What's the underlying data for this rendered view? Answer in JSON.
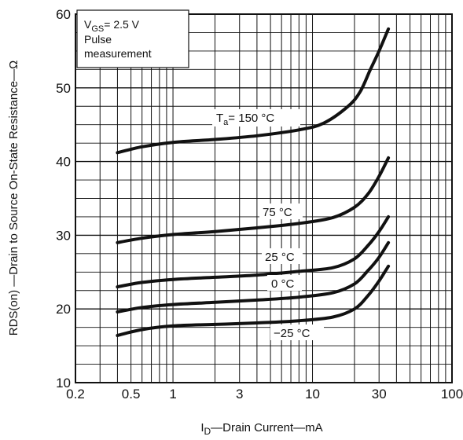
{
  "chart_data": {
    "type": "line",
    "x_scale": "log",
    "xlim": [
      0.2,
      100
    ],
    "ylim": [
      10,
      60
    ],
    "grid": true,
    "x_ticks": [
      "0.2",
      "0.5",
      "1",
      "3",
      "10",
      "30",
      "100"
    ],
    "x_tick_values": [
      0.2,
      0.5,
      1,
      3,
      10,
      30,
      100
    ],
    "y_ticks": [
      "10",
      "20",
      "30",
      "40",
      "50",
      "60"
    ],
    "y_tick_values": [
      10,
      20,
      30,
      40,
      50,
      60
    ],
    "xlabel": {
      "sym": "I",
      "sub": "D",
      "rest": "—Drain Current—mA"
    },
    "ylabel": "RDS(on) —Drain to Source On-State Resistance—Ω",
    "conditions": {
      "line1_sym": "V",
      "line1_sub": "GS",
      "line1_rest": "= 2.5 V",
      "line2": "Pulse",
      "line3": "measurement"
    },
    "series": [
      {
        "name": "Ta = 150 °C",
        "label_sym": "T",
        "label_sub": "a",
        "label_rest": "= 150 °C",
        "x": [
          0.4,
          0.6,
          1,
          2,
          4,
          8,
          12,
          18,
          22,
          26,
          30,
          35
        ],
        "y": [
          41.2,
          42.0,
          42.6,
          43.0,
          43.5,
          44.3,
          45.2,
          47.5,
          49.5,
          52.5,
          55.0,
          58.0
        ]
      },
      {
        "name": "75 °C",
        "label_sym": "",
        "label_sub": "",
        "label_rest": "75 °C",
        "x": [
          0.4,
          0.6,
          1,
          2,
          4,
          8,
          14,
          20,
          25,
          30,
          35
        ],
        "y": [
          29.0,
          29.6,
          30.1,
          30.5,
          31.0,
          31.6,
          32.4,
          33.8,
          35.6,
          38.0,
          40.5
        ]
      },
      {
        "name": "25 °C",
        "label_sym": "",
        "label_sub": "",
        "label_rest": "25 °C",
        "x": [
          0.4,
          0.6,
          1,
          2,
          4,
          8,
          14,
          20,
          25,
          30,
          35
        ],
        "y": [
          23.0,
          23.6,
          24.0,
          24.3,
          24.6,
          25.1,
          25.6,
          26.8,
          28.6,
          30.5,
          32.5
        ]
      },
      {
        "name": "0 °C",
        "label_sym": "",
        "label_sub": "",
        "label_rest": "0 °C",
        "x": [
          0.4,
          0.6,
          1,
          2,
          4,
          8,
          14,
          20,
          25,
          30,
          35
        ],
        "y": [
          19.6,
          20.2,
          20.6,
          20.9,
          21.2,
          21.6,
          22.2,
          23.4,
          25.2,
          27.0,
          29.0
        ]
      },
      {
        "name": "−25 °C",
        "label_sym": "",
        "label_sub": "",
        "label_rest": "−25 °C",
        "x": [
          0.4,
          0.6,
          1,
          2,
          4,
          8,
          14,
          20,
          25,
          30,
          35
        ],
        "y": [
          16.4,
          17.2,
          17.7,
          17.9,
          18.1,
          18.4,
          18.9,
          20.0,
          21.8,
          23.8,
          25.8
        ]
      }
    ],
    "line_color": "#111111",
    "grid_color": "#111111"
  }
}
